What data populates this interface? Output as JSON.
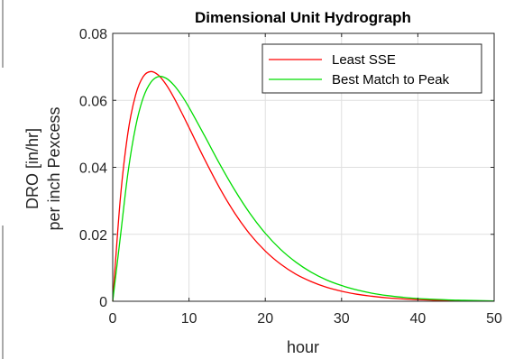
{
  "chart_data": {
    "type": "line",
    "title": "Dimensional Unit Hydrograph",
    "xlabel": "hour",
    "ylabel_line1": "DRO [in/hr]",
    "ylabel_line2": "per inch Pexcess",
    "xlim": [
      0,
      50
    ],
    "ylim": [
      0,
      0.08
    ],
    "xticks": [
      0,
      10,
      20,
      30,
      40,
      50
    ],
    "yticks": [
      0,
      0.02,
      0.04,
      0.06,
      0.08
    ],
    "xtick_labels": [
      "0",
      "10",
      "20",
      "30",
      "40",
      "50"
    ],
    "ytick_labels": [
      "0",
      "0.02",
      "0.04",
      "0.06",
      "0.08"
    ],
    "grid": true,
    "legend_position": "top-right",
    "series": [
      {
        "name": "Least SSE",
        "color": "#ff0000",
        "x": [
          0,
          1,
          2,
          3,
          4,
          5,
          6,
          7,
          8,
          9,
          10,
          12,
          14,
          16,
          18,
          20,
          22,
          24,
          26,
          28,
          30,
          32,
          34,
          36,
          38,
          40,
          42,
          44,
          46,
          48,
          50
        ],
        "y": [
          0,
          0.0307,
          0.0504,
          0.0616,
          0.0671,
          0.0686,
          0.0675,
          0.0647,
          0.0609,
          0.0565,
          0.0519,
          0.0426,
          0.0339,
          0.0263,
          0.02,
          0.015,
          0.0111,
          0.0081,
          0.0059,
          0.0042,
          0.003,
          0.0021,
          0.0015,
          0.001,
          0.0007,
          0.0005,
          0.0003,
          0.0002,
          0.0002,
          0.0001,
          0.0001
        ]
      },
      {
        "name": "Best Match to Peak",
        "color": "#00dd00",
        "x": [
          0,
          1,
          2,
          3,
          4,
          5,
          6,
          7,
          8,
          9,
          10,
          12,
          14,
          16,
          18,
          20,
          22,
          24,
          26,
          28,
          30,
          32,
          34,
          36,
          38,
          40,
          42,
          44,
          46,
          48,
          50
        ],
        "y": [
          0,
          0.0192,
          0.0384,
          0.0521,
          0.0608,
          0.0654,
          0.0671,
          0.0666,
          0.0646,
          0.0616,
          0.0579,
          0.0496,
          0.0411,
          0.0332,
          0.0262,
          0.0203,
          0.0155,
          0.0117,
          0.0087,
          0.0064,
          0.0047,
          0.0034,
          0.0024,
          0.0017,
          0.0012,
          0.0008,
          0.0006,
          0.0004,
          0.0003,
          0.0002,
          0.0001
        ]
      }
    ]
  }
}
